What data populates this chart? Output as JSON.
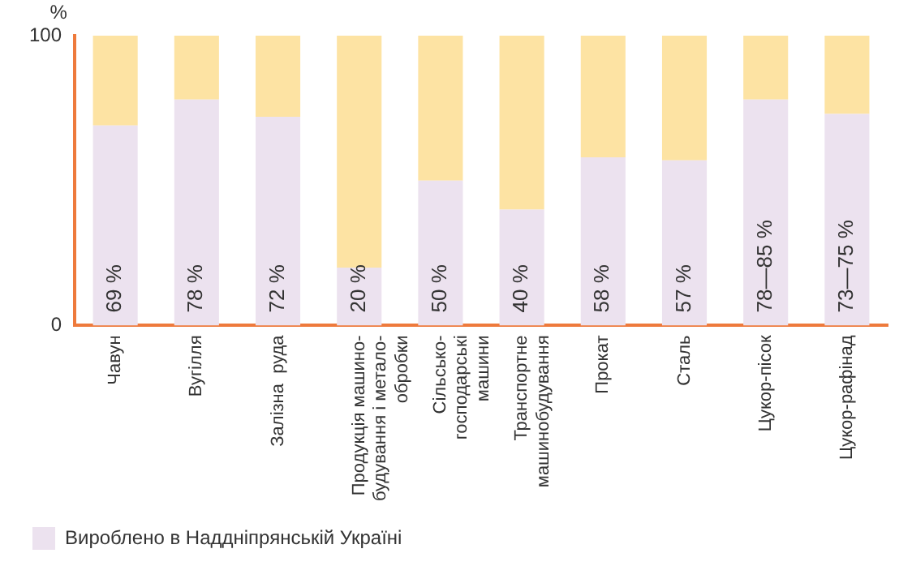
{
  "chart_data": {
    "type": "bar",
    "stacked": true,
    "ylabel": "%",
    "categories": [
      "Чавун",
      "Вугілля",
      "Залізна  руда",
      "Продукція машино-\nбудування і метало-\nобробки",
      "Сільсько-\nгосподарські\nмашини",
      "Транспортне\nмашинобудування",
      "Прокат",
      "Сталь",
      "Цукор-пісок",
      "Цукор-рафінад"
    ],
    "series": [
      {
        "name": "Вироблено в Наддніпрянській Україні",
        "color": "#ece2ef",
        "values": [
          69,
          78,
          72,
          20,
          50,
          40,
          58,
          57,
          78,
          73
        ],
        "value_labels": [
          "69 %",
          "78 %",
          "72 %",
          "20 %",
          "50 %",
          "40 %",
          "58 %",
          "57 %",
          "78—85 %",
          "73—75 %"
        ]
      },
      {
        "color": "#fde3a3",
        "values": [
          31,
          22,
          28,
          80,
          50,
          60,
          42,
          43,
          22,
          27
        ]
      }
    ],
    "ylim": [
      0,
      100
    ],
    "yticks": [
      0,
      100
    ],
    "grid": false,
    "legend": "bottom left"
  }
}
